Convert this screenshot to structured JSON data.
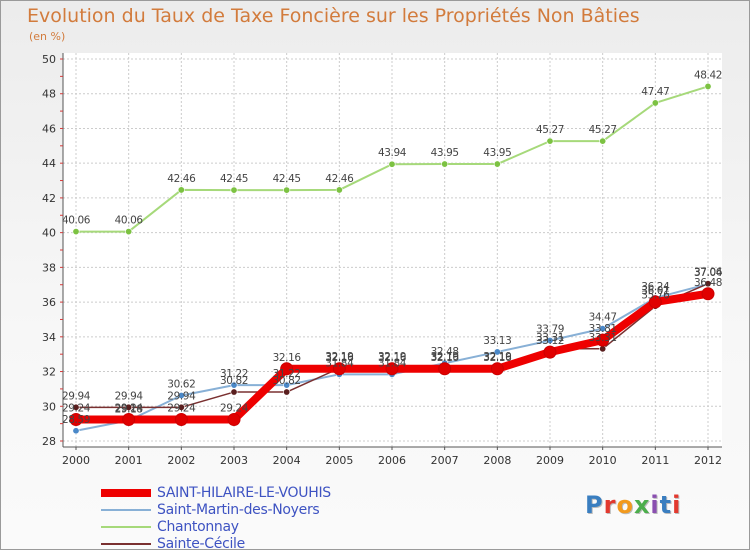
{
  "header": {
    "title": "Evolution du Taux de Taxe Foncière sur les Propriétés Non Bâties",
    "subtitle": "(en %)"
  },
  "logo": {
    "text": "Proxiti",
    "letter_colors": [
      "#3a7ec0",
      "#e2392f",
      "#f29a1e",
      "#4cae4c",
      "#8a4fb0",
      "#3a7ec0",
      "#e2392f"
    ]
  },
  "chart_data": {
    "type": "line",
    "title": "Evolution du Taux de Taxe Foncière sur les Propriétés Non Bâties",
    "ylabel": "(en %)",
    "xlabel": "",
    "categories": [
      "2000",
      "2001",
      "2002",
      "2003",
      "2004",
      "2005",
      "2006",
      "2007",
      "2008",
      "2009",
      "2010",
      "2011",
      "2012"
    ],
    "ylim": [
      28,
      50
    ],
    "yticks": [
      28,
      30,
      32,
      34,
      36,
      38,
      40,
      42,
      44,
      46,
      48,
      50
    ],
    "grid": true,
    "legend_position": "bottom-left",
    "series": [
      {
        "name": "Chantonnay",
        "color": "#a6d97a",
        "marker_color": "#7cc242",
        "width": 2,
        "values": [
          40.06,
          40.06,
          42.46,
          42.45,
          42.45,
          42.46,
          43.94,
          43.95,
          43.95,
          45.27,
          45.27,
          47.47,
          48.42
        ],
        "labels": [
          "40.06",
          "40.06",
          "42.46",
          "42.45",
          "42.45",
          "42.46",
          "43.94",
          "43.95",
          "43.95",
          "45.27",
          "45.27",
          "47.47",
          "48.42"
        ]
      },
      {
        "name": "Saint-Martin-des-Noyers",
        "color": "#88b0d6",
        "marker_color": "#4a88c8",
        "width": 2,
        "values": [
          28.59,
          29.18,
          30.62,
          31.22,
          31.22,
          31.84,
          31.84,
          32.48,
          33.13,
          33.79,
          34.47,
          36.24,
          37.04
        ],
        "labels": [
          "28.59",
          "29.18",
          "30.62",
          "31.22",
          "31.22",
          "31.84",
          "31.84",
          "32.48",
          "33.13",
          "33.79",
          "34.47",
          "36.24",
          "37.04"
        ]
      },
      {
        "name": "Sainte-Cécile",
        "color": "#7a3030",
        "marker_color": "#5a1f1f",
        "width": 1.5,
        "values": [
          29.94,
          29.94,
          29.94,
          30.82,
          30.82,
          32.19,
          32.19,
          32.19,
          32.19,
          33.31,
          33.31,
          35.76,
          37.06
        ],
        "labels": [
          "29.94",
          "29.94",
          "29.94",
          "30.82",
          "30.82",
          "32.19",
          "32.19",
          "32.19",
          "32.19",
          "33.31",
          "33.31",
          "35.76",
          "37.06"
        ]
      },
      {
        "name": "SAINT-HILAIRE-LE-VOUHIS",
        "color": "#ee0000",
        "marker_color": "#e00000",
        "width": 8,
        "values": [
          29.24,
          29.24,
          29.24,
          29.24,
          32.16,
          32.16,
          32.16,
          32.16,
          32.16,
          33.12,
          33.81,
          36.01,
          36.48
        ],
        "labels": [
          "29.24",
          "29.24",
          "29.24",
          "29.24",
          "32.16",
          "32.16",
          "32.16",
          "32.16",
          "32.16",
          "33.12",
          "33.81",
          "36.01",
          "36.48"
        ]
      }
    ],
    "legend_order": [
      "SAINT-HILAIRE-LE-VOUHIS",
      "Saint-Martin-des-Noyers",
      "Chantonnay",
      "Sainte-Cécile"
    ]
  }
}
